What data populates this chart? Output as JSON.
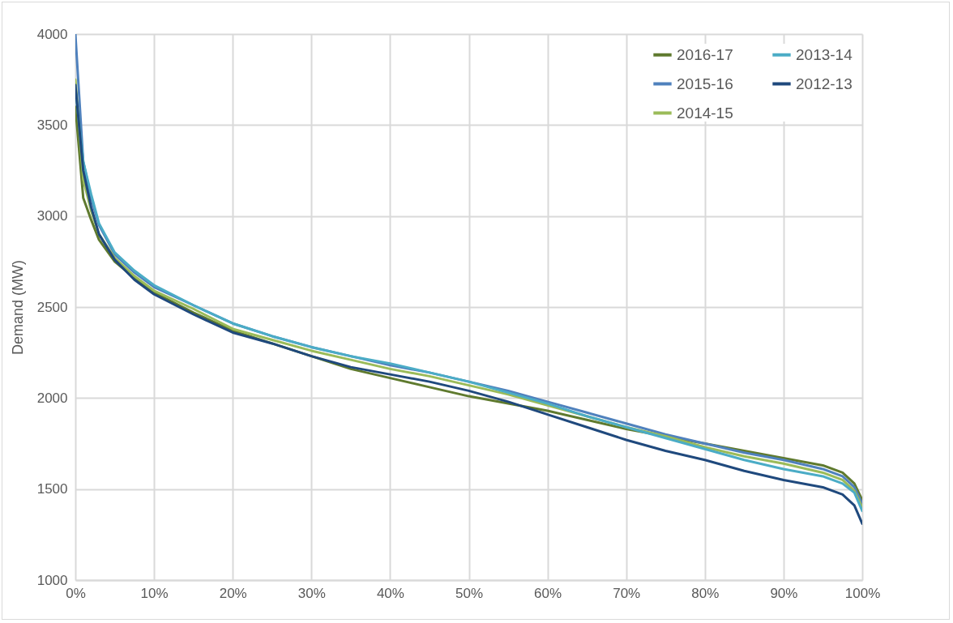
{
  "chart_data": {
    "type": "line",
    "ylabel": "Demand (MW)",
    "x": [
      0,
      1,
      2,
      3,
      5,
      7.5,
      10,
      15,
      20,
      25,
      30,
      35,
      40,
      45,
      50,
      55,
      60,
      65,
      70,
      75,
      80,
      85,
      90,
      95,
      97.5,
      99,
      100
    ],
    "xlim": [
      0,
      100
    ],
    "xticks": [
      {
        "value": 0,
        "label": "0%"
      },
      {
        "value": 10,
        "label": "10%"
      },
      {
        "value": 20,
        "label": "20%"
      },
      {
        "value": 30,
        "label": "30%"
      },
      {
        "value": 40,
        "label": "40%"
      },
      {
        "value": 50,
        "label": "50%"
      },
      {
        "value": 60,
        "label": "60%"
      },
      {
        "value": 70,
        "label": "70%"
      },
      {
        "value": 80,
        "label": "80%"
      },
      {
        "value": 90,
        "label": "90%"
      },
      {
        "value": 100,
        "label": "100%"
      }
    ],
    "ylim": [
      1000,
      4000
    ],
    "yticks": [
      1000,
      1500,
      2000,
      2500,
      3000,
      3500,
      4000
    ],
    "grid": true,
    "legend": "top right",
    "marker": "none",
    "line_style": "solid",
    "series": [
      {
        "name": "2016-17",
        "color": "#5f7a2e",
        "values": [
          3600,
          3100,
          2980,
          2870,
          2750,
          2660,
          2580,
          2470,
          2370,
          2300,
          2230,
          2160,
          2110,
          2060,
          2010,
          1970,
          1930,
          1880,
          1830,
          1790,
          1750,
          1710,
          1670,
          1630,
          1590,
          1530,
          1440
        ]
      },
      {
        "name": "2015-16",
        "color": "#4f81bd",
        "values": [
          4000,
          3300,
          3100,
          2950,
          2790,
          2690,
          2610,
          2510,
          2410,
          2340,
          2280,
          2230,
          2180,
          2140,
          2090,
          2040,
          1980,
          1920,
          1860,
          1800,
          1750,
          1700,
          1660,
          1610,
          1570,
          1510,
          1420
        ]
      },
      {
        "name": "2014-15",
        "color": "#9bbb59",
        "values": [
          3750,
          3200,
          3030,
          2900,
          2770,
          2670,
          2590,
          2490,
          2380,
          2320,
          2260,
          2210,
          2160,
          2120,
          2070,
          2020,
          1960,
          1900,
          1840,
          1790,
          1730,
          1680,
          1640,
          1590,
          1550,
          1490,
          1400
        ]
      },
      {
        "name": "2013-14",
        "color": "#4bacc6",
        "values": [
          3700,
          3300,
          3120,
          2960,
          2800,
          2700,
          2620,
          2510,
          2410,
          2340,
          2280,
          2230,
          2190,
          2140,
          2090,
          2030,
          1970,
          1900,
          1840,
          1780,
          1720,
          1660,
          1610,
          1570,
          1530,
          1480,
          1380
        ]
      },
      {
        "name": "2012-13",
        "color": "#1f497d",
        "values": [
          3720,
          3250,
          3050,
          2900,
          2760,
          2650,
          2570,
          2460,
          2360,
          2300,
          2230,
          2170,
          2130,
          2090,
          2040,
          1980,
          1910,
          1840,
          1770,
          1710,
          1660,
          1600,
          1550,
          1510,
          1470,
          1410,
          1310
        ]
      }
    ]
  }
}
